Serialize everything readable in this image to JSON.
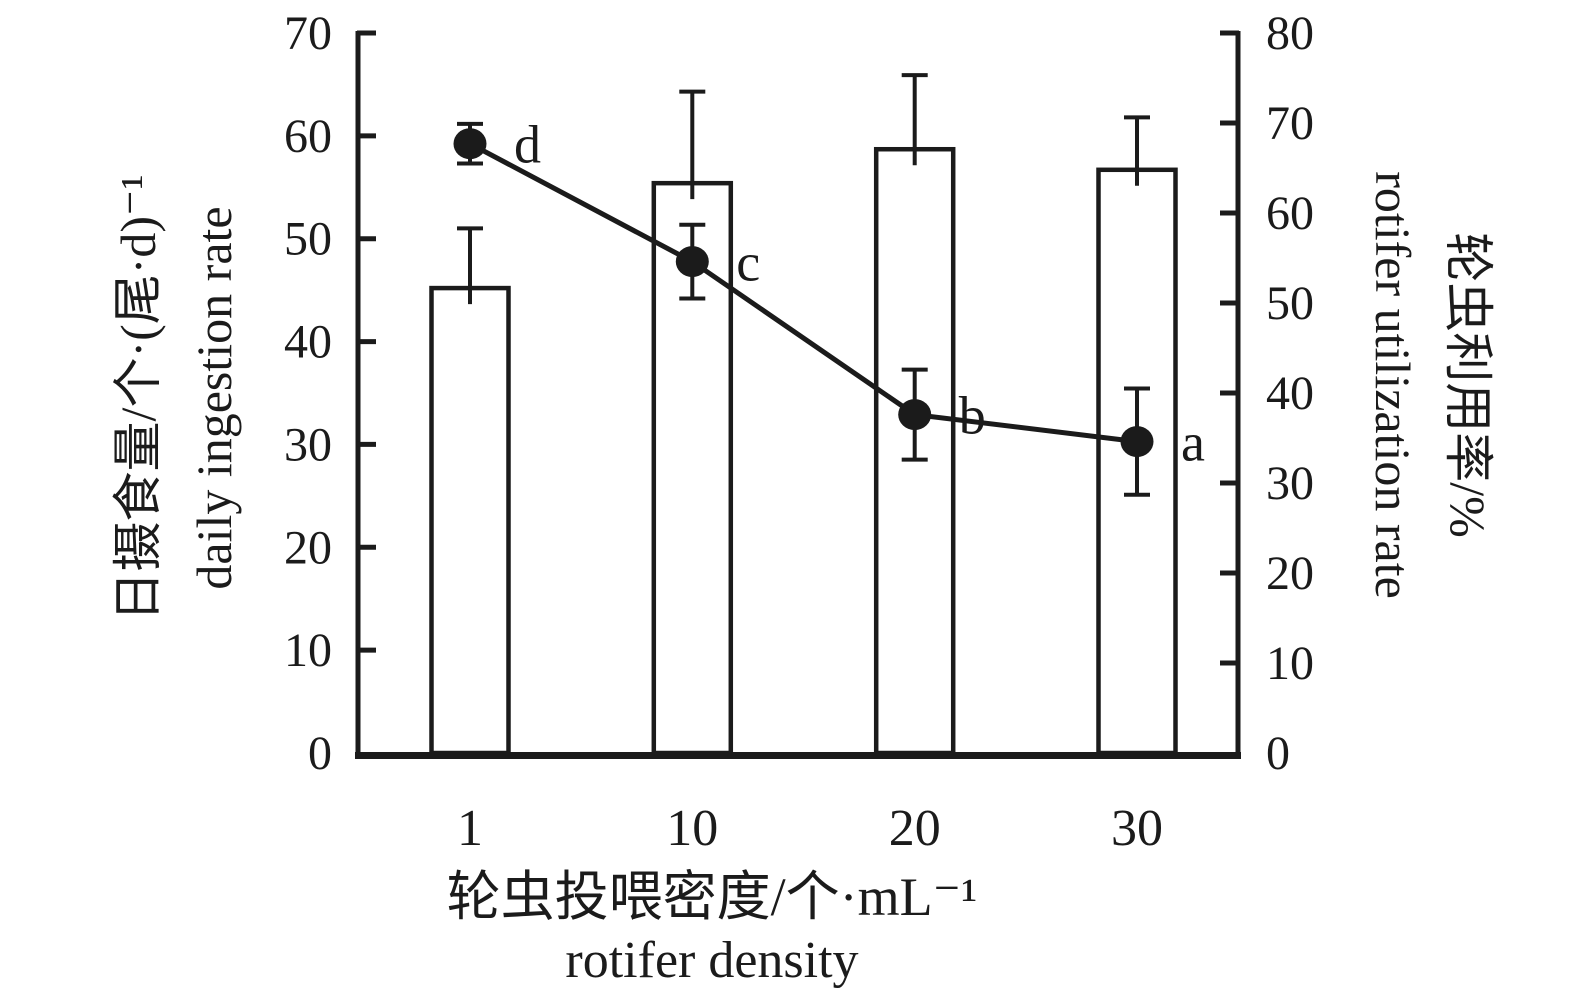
{
  "figure": {
    "background": "#ffffff",
    "ink_color": "#1b1b1b"
  },
  "chart_data": {
    "type": "bar+line",
    "title": "",
    "legend": "none",
    "grid": false,
    "categories": [
      "1",
      "10",
      "20",
      "30"
    ],
    "x_axis": {
      "title_zh": "轮虫投喂密度/个·mL⁻¹",
      "title_en": "rotifer density",
      "tick_labels": [
        "1",
        "10",
        "20",
        "30"
      ]
    },
    "left_axis": {
      "title_zh": "日摄食量/个·(尾·d)⁻¹",
      "title_en": "daily ingestion rate",
      "min": 0,
      "max": 70,
      "tick_step": 10,
      "tick_values": [
        70,
        60,
        50,
        40,
        30,
        20,
        10,
        0
      ],
      "tick_labels": [
        "70",
        "60",
        "50",
        "40",
        "30",
        "20",
        "10",
        "0"
      ]
    },
    "right_axis": {
      "title_zh": "轮虫利用率/%",
      "title_en": "rotifer utilization rate",
      "min": 0,
      "max": 80,
      "tick_step": 10,
      "tick_values": [
        80,
        70,
        60,
        50,
        40,
        30,
        20,
        10,
        0
      ],
      "tick_labels": [
        "80",
        "70",
        "60",
        "50",
        "40",
        "30",
        "20",
        "10",
        "0"
      ]
    },
    "series": [
      {
        "name": "daily ingestion rate",
        "type": "bar",
        "axis": "left",
        "fill": "#ffffff",
        "stroke": "#1b1b1b",
        "values": [
          45.2,
          55.4,
          58.7,
          56.7
        ],
        "error_plus": [
          5.8,
          8.9,
          7.2,
          5.1
        ]
      },
      {
        "name": "rotifer utilization rate",
        "type": "line",
        "axis": "right",
        "color": "#1b1b1b",
        "marker": "filled-circle",
        "values": [
          67.7,
          54.6,
          37.6,
          34.6
        ],
        "error": [
          2.2,
          4.1,
          5.0,
          5.9
        ],
        "point_labels": [
          "d",
          "c",
          "b",
          "a"
        ]
      }
    ]
  }
}
